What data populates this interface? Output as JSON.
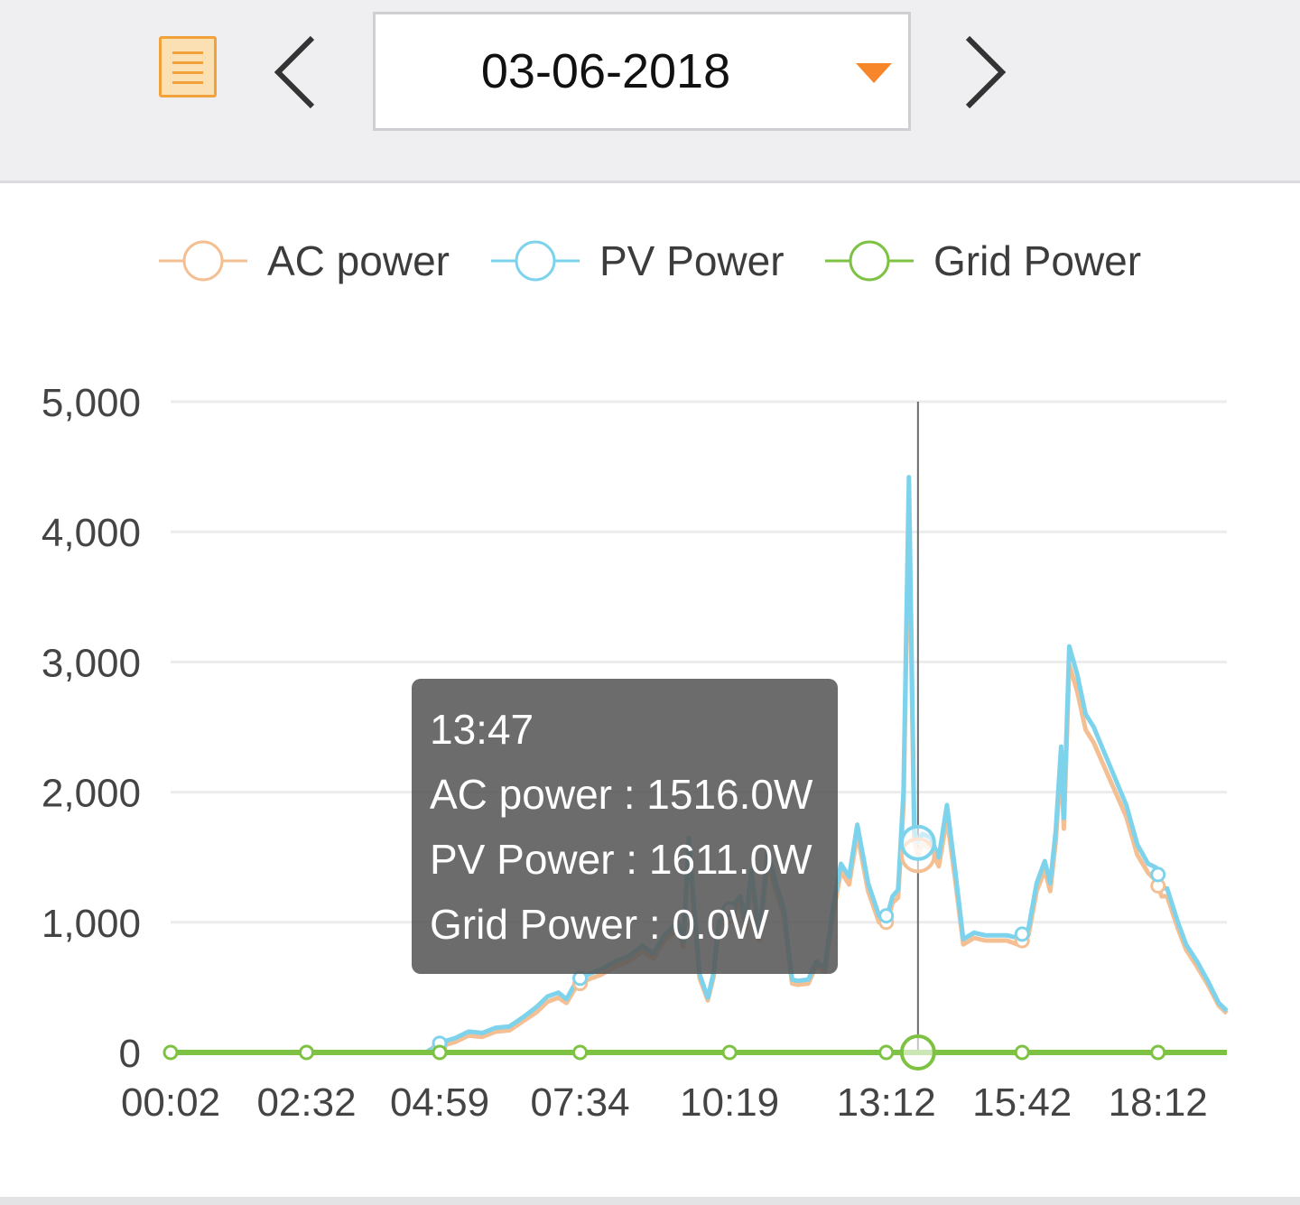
{
  "header": {
    "date": "03-06-2018",
    "menu_icon": "list-icon",
    "prev_icon": "chevron-left-icon",
    "next_icon": "chevron-right-icon",
    "dropdown_icon": "caret-down-icon",
    "accent_color": "#f7862a"
  },
  "legend": {
    "items": [
      {
        "label": "AC power",
        "color": "#f4bf93"
      },
      {
        "label": "PV Power",
        "color": "#7ed3ec"
      },
      {
        "label": "Grid Power",
        "color": "#7dc242"
      }
    ]
  },
  "tooltip": {
    "time": "13:47",
    "ac": "AC power : 1516.0W",
    "pv": "PV Power : 1611.0W",
    "grid": "Grid Power : 0.0W"
  },
  "chart_data": {
    "type": "line",
    "x_unit": "time of day (hh:mm)",
    "x_range": [
      "00:02",
      "19:28"
    ],
    "x_tick_labels": [
      "00:02",
      "02:32",
      "04:59",
      "07:34",
      "10:19",
      "13:12",
      "15:42",
      "18:12"
    ],
    "y_tick_labels": [
      "0",
      "1,000",
      "2,000",
      "3,000",
      "4,000",
      "5,000"
    ],
    "ylim": [
      0,
      5000
    ],
    "grid": true,
    "legend_position": "top",
    "cursor_time": "13:47",
    "series": [
      {
        "name": "PV Power",
        "color": "#7ed3ec",
        "points": [
          [
            "04:44",
            0
          ],
          [
            "05:01",
            80
          ],
          [
            "05:16",
            110
          ],
          [
            "05:31",
            160
          ],
          [
            "05:46",
            150
          ],
          [
            "06:01",
            190
          ],
          [
            "06:16",
            200
          ],
          [
            "06:31",
            270
          ],
          [
            "06:46",
            350
          ],
          [
            "06:58",
            430
          ],
          [
            "07:10",
            460
          ],
          [
            "07:19",
            410
          ],
          [
            "07:31",
            560
          ],
          [
            "07:43",
            600
          ],
          [
            "07:58",
            640
          ],
          [
            "08:13",
            700
          ],
          [
            "08:28",
            740
          ],
          [
            "08:43",
            820
          ],
          [
            "08:55",
            760
          ],
          [
            "09:07",
            900
          ],
          [
            "09:22",
            1000
          ],
          [
            "09:28",
            850
          ],
          [
            "09:34",
            1650
          ],
          [
            "09:40",
            1100
          ],
          [
            "09:46",
            600
          ],
          [
            "09:55",
            420
          ],
          [
            "10:01",
            600
          ],
          [
            "10:07",
            1000
          ],
          [
            "10:19",
            1100
          ],
          [
            "10:31",
            1200
          ],
          [
            "10:37",
            1000
          ],
          [
            "10:43",
            1400
          ],
          [
            "10:52",
            900
          ],
          [
            "11:01",
            1550
          ],
          [
            "11:10",
            1300
          ],
          [
            "11:19",
            1100
          ],
          [
            "11:28",
            560
          ],
          [
            "11:34",
            550
          ],
          [
            "11:46",
            560
          ],
          [
            "11:55",
            700
          ],
          [
            "12:04",
            650
          ],
          [
            "12:13",
            1100
          ],
          [
            "12:22",
            1450
          ],
          [
            "12:31",
            1350
          ],
          [
            "12:40",
            1750
          ],
          [
            "12:52",
            1300
          ],
          [
            "13:04",
            1050
          ],
          [
            "13:13",
            1050
          ],
          [
            "13:19",
            1200
          ],
          [
            "13:25",
            1250
          ],
          [
            "13:31",
            2000
          ],
          [
            "13:37",
            4420
          ],
          [
            "13:43",
            1700
          ],
          [
            "13:47",
            1611
          ],
          [
            "13:52",
            1680
          ],
          [
            "14:01",
            1650
          ],
          [
            "14:10",
            1500
          ],
          [
            "14:19",
            1900
          ],
          [
            "14:28",
            1400
          ],
          [
            "14:37",
            870
          ],
          [
            "14:49",
            920
          ],
          [
            "15:01",
            900
          ],
          [
            "15:13",
            900
          ],
          [
            "15:25",
            900
          ],
          [
            "15:37",
            880
          ],
          [
            "15:49",
            950
          ],
          [
            "15:58",
            1300
          ],
          [
            "16:07",
            1470
          ],
          [
            "16:13",
            1300
          ],
          [
            "16:19",
            1700
          ],
          [
            "16:25",
            2350
          ],
          [
            "16:28",
            1800
          ],
          [
            "16:34",
            3120
          ],
          [
            "16:43",
            2900
          ],
          [
            "16:52",
            2600
          ],
          [
            "17:01",
            2500
          ],
          [
            "17:13",
            2300
          ],
          [
            "17:25",
            2100
          ],
          [
            "17:37",
            1900
          ],
          [
            "17:49",
            1600
          ],
          [
            "18:01",
            1450
          ],
          [
            "18:10",
            1420
          ],
          [
            "18:16",
            1260
          ],
          [
            "18:22",
            1260
          ],
          [
            "18:34",
            1000
          ],
          [
            "18:43",
            830
          ],
          [
            "18:55",
            700
          ],
          [
            "19:07",
            550
          ],
          [
            "19:19",
            380
          ],
          [
            "19:28",
            320
          ]
        ]
      },
      {
        "name": "AC power",
        "color": "#f4bf93",
        "points": [
          [
            "04:44",
            0
          ],
          [
            "05:01",
            50
          ],
          [
            "05:16",
            80
          ],
          [
            "05:31",
            130
          ],
          [
            "05:46",
            120
          ],
          [
            "06:01",
            160
          ],
          [
            "06:16",
            170
          ],
          [
            "06:31",
            240
          ],
          [
            "06:46",
            310
          ],
          [
            "06:58",
            390
          ],
          [
            "07:10",
            420
          ],
          [
            "07:19",
            380
          ],
          [
            "07:31",
            520
          ],
          [
            "07:43",
            560
          ],
          [
            "07:58",
            600
          ],
          [
            "08:13",
            660
          ],
          [
            "08:28",
            700
          ],
          [
            "08:43",
            780
          ],
          [
            "08:55",
            720
          ],
          [
            "09:07",
            860
          ],
          [
            "09:22",
            950
          ],
          [
            "09:28",
            810
          ],
          [
            "09:34",
            1580
          ],
          [
            "09:40",
            1050
          ],
          [
            "09:46",
            570
          ],
          [
            "09:55",
            400
          ],
          [
            "10:01",
            570
          ],
          [
            "10:07",
            950
          ],
          [
            "10:19",
            1050
          ],
          [
            "10:31",
            1150
          ],
          [
            "10:37",
            950
          ],
          [
            "10:43",
            1340
          ],
          [
            "10:52",
            860
          ],
          [
            "11:01",
            1480
          ],
          [
            "11:10",
            1240
          ],
          [
            "11:19",
            1050
          ],
          [
            "11:28",
            530
          ],
          [
            "11:34",
            520
          ],
          [
            "11:46",
            530
          ],
          [
            "11:55",
            670
          ],
          [
            "12:04",
            620
          ],
          [
            "12:13",
            1050
          ],
          [
            "12:22",
            1390
          ],
          [
            "12:31",
            1290
          ],
          [
            "12:40",
            1680
          ],
          [
            "12:52",
            1240
          ],
          [
            "13:04",
            1000
          ],
          [
            "13:13",
            1000
          ],
          [
            "13:19",
            1150
          ],
          [
            "13:25",
            1190
          ],
          [
            "13:31",
            1900
          ],
          [
            "13:37",
            4200
          ],
          [
            "13:43",
            1610
          ],
          [
            "13:47",
            1516
          ],
          [
            "13:52",
            1600
          ],
          [
            "14:01",
            1570
          ],
          [
            "14:10",
            1430
          ],
          [
            "14:19",
            1800
          ],
          [
            "14:28",
            1330
          ],
          [
            "14:37",
            830
          ],
          [
            "14:49",
            880
          ],
          [
            "15:01",
            860
          ],
          [
            "15:13",
            860
          ],
          [
            "15:25",
            860
          ],
          [
            "15:37",
            830
          ],
          [
            "15:49",
            900
          ],
          [
            "15:58",
            1240
          ],
          [
            "16:07",
            1400
          ],
          [
            "16:13",
            1240
          ],
          [
            "16:19",
            1620
          ],
          [
            "16:25",
            2240
          ],
          [
            "16:28",
            1720
          ],
          [
            "16:34",
            2980
          ],
          [
            "16:43",
            2770
          ],
          [
            "16:52",
            2480
          ],
          [
            "17:01",
            2380
          ],
          [
            "17:13",
            2190
          ],
          [
            "17:25",
            2000
          ],
          [
            "17:37",
            1810
          ],
          [
            "17:49",
            1520
          ],
          [
            "18:01",
            1380
          ],
          [
            "18:10",
            1320
          ],
          [
            "18:16",
            1200
          ],
          [
            "18:22",
            1200
          ],
          [
            "18:34",
            950
          ],
          [
            "18:43",
            790
          ],
          [
            "18:55",
            660
          ],
          [
            "19:07",
            520
          ],
          [
            "19:19",
            360
          ],
          [
            "19:28",
            300
          ]
        ]
      },
      {
        "name": "Grid Power",
        "color": "#7dc242",
        "points": [
          [
            "00:02",
            0
          ],
          [
            "19:28",
            0
          ]
        ]
      }
    ]
  }
}
